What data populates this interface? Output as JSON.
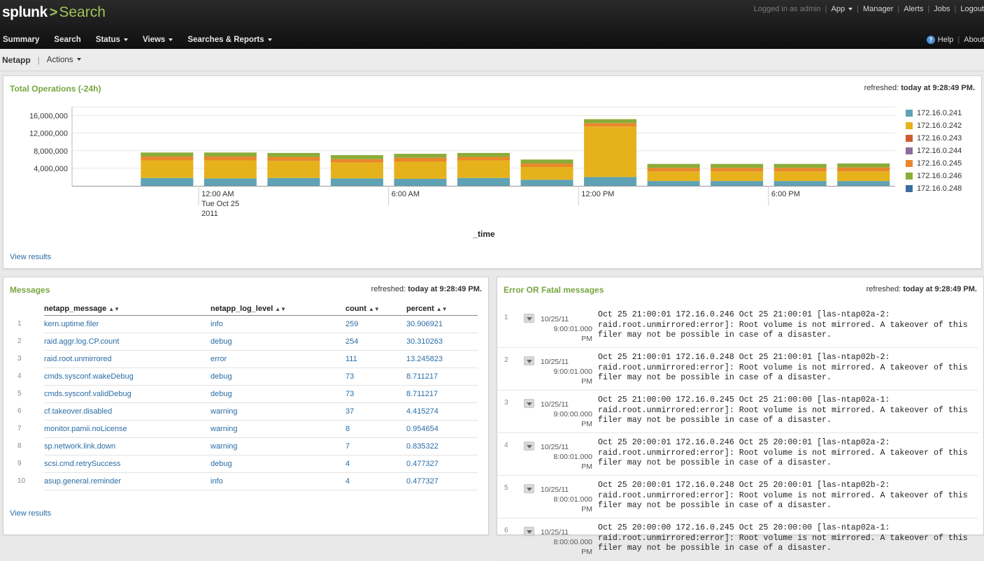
{
  "header": {
    "logo_text": "splunk",
    "logo_chevron": ">",
    "app_name": "Search",
    "logged_in": "Logged in as admin",
    "app_menu": "App",
    "manager": "Manager",
    "alerts": "Alerts",
    "jobs": "Jobs",
    "logout": "Logout"
  },
  "nav": {
    "items": [
      {
        "label": "Summary",
        "dropdown": false
      },
      {
        "label": "Search",
        "dropdown": false
      },
      {
        "label": "Status",
        "dropdown": true
      },
      {
        "label": "Views",
        "dropdown": true
      },
      {
        "label": "Searches & Reports",
        "dropdown": true
      }
    ],
    "help": "Help",
    "about": "About"
  },
  "appbar": {
    "title": "Netapp",
    "actions": "Actions"
  },
  "total_ops": {
    "title": "Total Operations (-24h)",
    "refreshed_label": "refreshed:",
    "refreshed_time": "today at 9:28:49 PM.",
    "view_results": "View results",
    "xlabel": "_time"
  },
  "chart_data": {
    "type": "bar",
    "stacked": true,
    "title": "Total Operations (-24h)",
    "xlabel": "_time",
    "ylabel": "",
    "ylim": [
      0,
      18000000
    ],
    "y_ticks": [
      "16,000,000",
      "12,000,000",
      "8,000,000",
      "4,000,000"
    ],
    "y_tick_values": [
      16000000,
      12000000,
      8000000,
      4000000
    ],
    "x_tick_labels": [
      {
        "slot": 1,
        "lines": [
          "12:00 AM",
          "Tue Oct 25",
          "2011"
        ]
      },
      {
        "slot": 4,
        "lines": [
          "6:00 AM"
        ]
      },
      {
        "slot": 7,
        "lines": [
          "12:00 PM"
        ]
      },
      {
        "slot": 10,
        "lines": [
          "6:00 PM"
        ]
      }
    ],
    "grid": true,
    "legend_position": "right",
    "slots": 13,
    "categories": [
      "slot1",
      "slot2",
      "slot3",
      "slot4",
      "slot5",
      "slot6",
      "slot7",
      "slot8",
      "slot9",
      "slot10",
      "slot11",
      "slot12",
      "slot13"
    ],
    "series": [
      {
        "name": "172.16.0.241",
        "color": "#5fa2b3",
        "values": [
          null,
          1800000,
          1700000,
          1800000,
          1700000,
          1600000,
          1800000,
          1400000,
          2000000,
          1100000,
          1100000,
          1100000,
          1100000
        ]
      },
      {
        "name": "172.16.0.242",
        "color": "#e6b21c",
        "values": [
          null,
          4000000,
          4100000,
          3900000,
          3600000,
          3900000,
          4000000,
          2900000,
          11500000,
          2200000,
          2200000,
          2200000,
          2200000
        ]
      },
      {
        "name": "172.16.0.243",
        "color": "#cd5b32",
        "values": [
          null,
          0,
          0,
          0,
          0,
          0,
          0,
          0,
          0,
          0,
          0,
          0,
          0
        ]
      },
      {
        "name": "172.16.0.244",
        "color": "#8a6d9a",
        "values": [
          null,
          0,
          0,
          0,
          0,
          0,
          0,
          0,
          0,
          0,
          0,
          0,
          0
        ]
      },
      {
        "name": "172.16.0.245",
        "color": "#e9872b",
        "values": [
          null,
          900000,
          900000,
          900000,
          800000,
          900000,
          800000,
          800000,
          800000,
          800000,
          800000,
          800000,
          900000
        ]
      },
      {
        "name": "172.16.0.246",
        "color": "#8bac38",
        "values": [
          null,
          900000,
          900000,
          900000,
          900000,
          900000,
          900000,
          900000,
          900000,
          900000,
          900000,
          900000,
          900000
        ]
      },
      {
        "name": "172.16.0.248",
        "color": "#3b6ea0",
        "values": [
          null,
          0,
          0,
          0,
          0,
          0,
          0,
          0,
          0,
          0,
          0,
          0,
          0
        ]
      }
    ]
  },
  "messages": {
    "title": "Messages",
    "refreshed_label": "refreshed:",
    "refreshed_time": "today at 9:28:49 PM.",
    "view_results": "View results",
    "columns": [
      "netapp_message",
      "netapp_log_level",
      "count",
      "percent"
    ],
    "rows": [
      {
        "n": "1",
        "message": "kern.uptime.filer",
        "level": "info",
        "count": "259",
        "percent": "30.906921"
      },
      {
        "n": "2",
        "message": "raid.aggr.log.CP.count",
        "level": "debug",
        "count": "254",
        "percent": "30.310263"
      },
      {
        "n": "3",
        "message": "raid.root.unmirrored",
        "level": "error",
        "count": "111",
        "percent": "13.245823"
      },
      {
        "n": "4",
        "message": "cmds.sysconf.wakeDebug",
        "level": "debug",
        "count": "73",
        "percent": "8.711217"
      },
      {
        "n": "5",
        "message": "cmds.sysconf.validDebug",
        "level": "debug",
        "count": "73",
        "percent": "8.711217"
      },
      {
        "n": "6",
        "message": "cf.takeover.disabled",
        "level": "warning",
        "count": "37",
        "percent": "4.415274"
      },
      {
        "n": "7",
        "message": "monitor.pamii.noLicense",
        "level": "warning",
        "count": "8",
        "percent": "0.954654"
      },
      {
        "n": "8",
        "message": "sp.network.link.down",
        "level": "warning",
        "count": "7",
        "percent": "0.835322"
      },
      {
        "n": "9",
        "message": "scsi.cmd.retrySuccess",
        "level": "debug",
        "count": "4",
        "percent": "0.477327"
      },
      {
        "n": "10",
        "message": "asup.general.reminder",
        "level": "info",
        "count": "4",
        "percent": "0.477327"
      }
    ]
  },
  "errors": {
    "title": "Error OR Fatal messages",
    "refreshed_label": "refreshed:",
    "refreshed_time": "today at 9:28:49 PM.",
    "rows": [
      {
        "n": "1",
        "date": "10/25/11",
        "time": "9:00:01.000 PM",
        "text": "Oct 25 21:00:01 172.16.0.246 Oct 25 21:00:01 [las-ntap02a-2:\nraid.root.unmirrored:error]: Root volume is not mirrored. A takeover of this\nfiler may not be possible in case of a disaster."
      },
      {
        "n": "2",
        "date": "10/25/11",
        "time": "9:00:01.000 PM",
        "text": "Oct 25 21:00:01 172.16.0.248 Oct 25 21:00:01 [las-ntap02b-2:\nraid.root.unmirrored:error]: Root volume is not mirrored. A takeover of this\nfiler may not be possible in case of a disaster."
      },
      {
        "n": "3",
        "date": "10/25/11",
        "time": "9:00:00.000 PM",
        "text": "Oct 25 21:00:00 172.16.0.245 Oct 25 21:00:00 [las-ntap02a-1:\nraid.root.unmirrored:error]: Root volume is not mirrored. A takeover of this\nfiler may not be possible in case of a disaster."
      },
      {
        "n": "4",
        "date": "10/25/11",
        "time": "8:00:01.000 PM",
        "text": "Oct 25 20:00:01 172.16.0.246 Oct 25 20:00:01 [las-ntap02a-2:\nraid.root.unmirrored:error]: Root volume is not mirrored. A takeover of this\nfiler may not be possible in case of a disaster."
      },
      {
        "n": "5",
        "date": "10/25/11",
        "time": "8:00:01.000 PM",
        "text": "Oct 25 20:00:01 172.16.0.248 Oct 25 20:00:01 [las-ntap02b-2:\nraid.root.unmirrored:error]: Root volume is not mirrored. A takeover of this\nfiler may not be possible in case of a disaster."
      },
      {
        "n": "6",
        "date": "10/25/11",
        "time": "8:00:00.000 PM",
        "text": "Oct 25 20:00:00 172.16.0.245 Oct 25 20:00:00 [las-ntap02a-1:\nraid.root.unmirrored:error]: Root volume is not mirrored. A takeover of this\nfiler may not be possible in case of a disaster."
      }
    ]
  }
}
